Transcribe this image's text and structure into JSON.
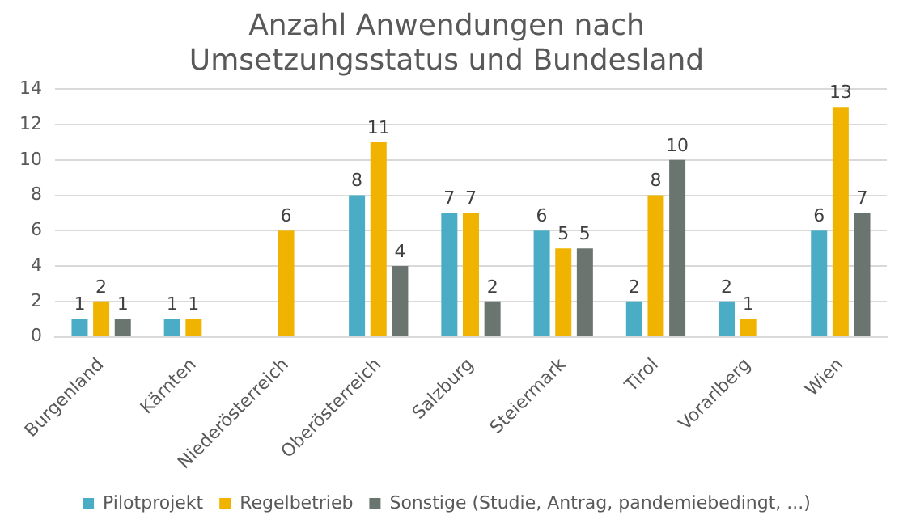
{
  "chart_data": {
    "type": "bar",
    "title": "Anzahl Anwendungen nach Umsetzungsstatus und Bundesland",
    "categories": [
      "Burgenland",
      "Kärnten",
      "Niederösterreich",
      "Oberösterreich",
      "Salzburg",
      "Steiermark",
      "Tirol",
      "Vorarlberg",
      "Wien"
    ],
    "series": [
      {
        "name": "Pilotprojekt",
        "color": "#4bacc6",
        "values": [
          1,
          1,
          null,
          8,
          7,
          6,
          2,
          2,
          6
        ]
      },
      {
        "name": "Regelbetrieb",
        "color": "#f0b400",
        "values": [
          2,
          1,
          6,
          11,
          7,
          5,
          8,
          1,
          13
        ]
      },
      {
        "name": "Sonstige (Studie, Antrag, pandemiebedingt, ...)",
        "color": "#6b7570",
        "values": [
          1,
          null,
          null,
          4,
          2,
          5,
          10,
          null,
          7
        ]
      }
    ],
    "ylim": [
      0,
      14
    ],
    "yticks": [
      0,
      2,
      4,
      6,
      8,
      10,
      12,
      14
    ],
    "grid": "y",
    "legend": "bottom",
    "data_labels": true
  }
}
